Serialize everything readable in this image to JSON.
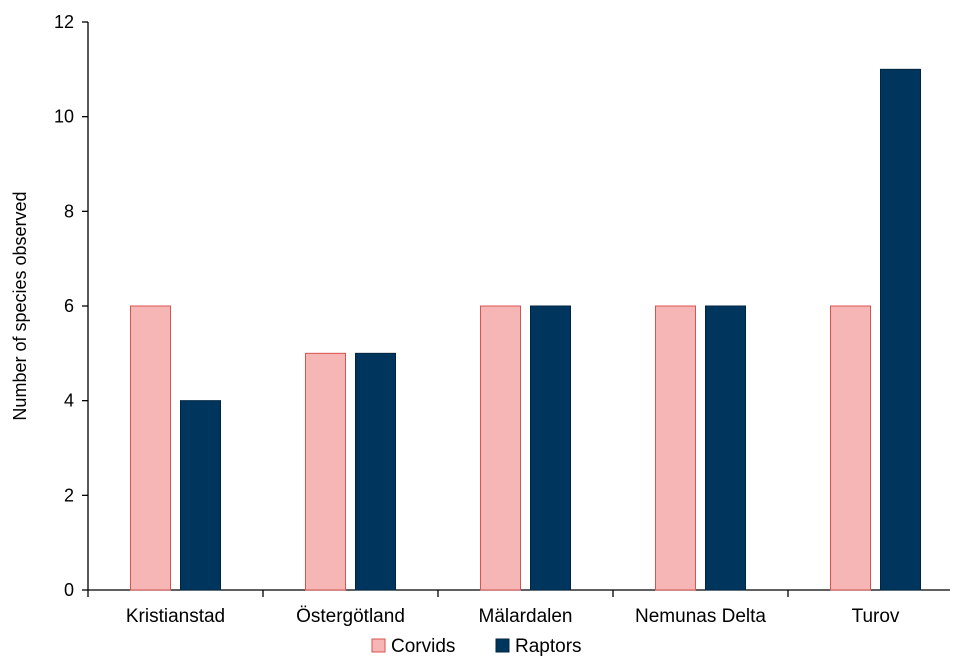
{
  "chart_data": {
    "type": "bar",
    "categories": [
      "Kristianstad",
      "Östergötland",
      "Mälardalen",
      "Nemunas Delta",
      "Turov"
    ],
    "series": [
      {
        "name": "Corvids",
        "values": [
          6,
          5,
          6,
          6,
          6
        ],
        "color": "#f7b6b6",
        "stroke": "#d9534f"
      },
      {
        "name": "Raptors",
        "values": [
          4,
          5,
          6,
          6,
          11
        ],
        "color": "#00365e",
        "stroke": "#002540"
      }
    ],
    "title": "",
    "xlabel": "",
    "ylabel": "Number of species observed",
    "ylim": [
      0,
      12
    ],
    "yticks": [
      0,
      2,
      4,
      6,
      8,
      10,
      12
    ],
    "grid": false,
    "legend_position": "bottom-center"
  }
}
